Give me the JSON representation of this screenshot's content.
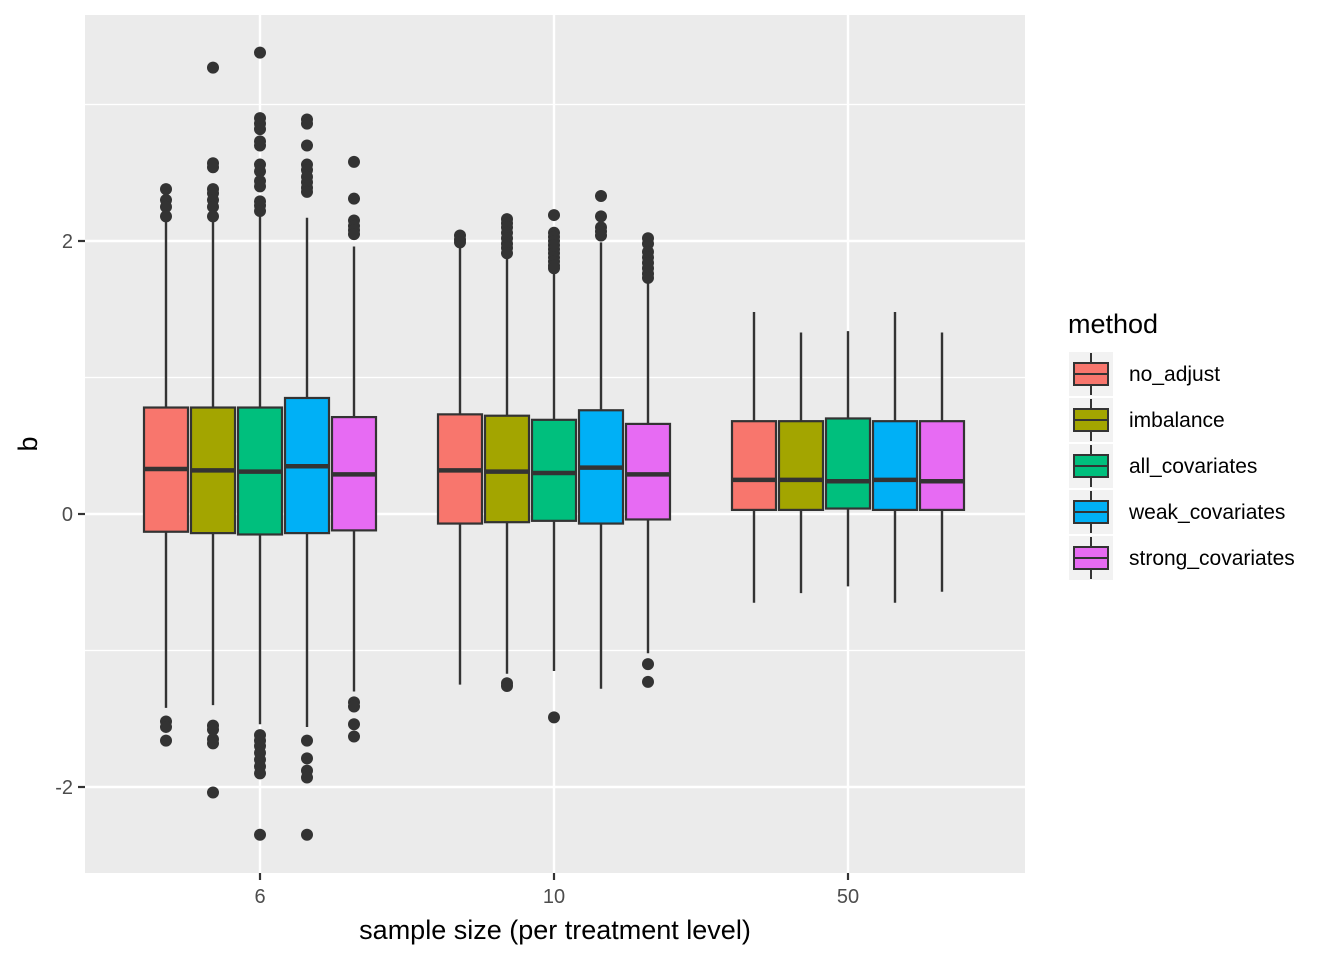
{
  "chart_data": {
    "type": "boxplot",
    "xlabel": "sample size (per treatment level)",
    "ylabel": "b",
    "categories": [
      "6",
      "10",
      "50"
    ],
    "ylim": [
      -2.6,
      3.65
    ],
    "yticks": [
      -2,
      0,
      2
    ],
    "ytick_labels": [
      "-2",
      "0",
      "2"
    ],
    "grid": true,
    "legend": {
      "title": "method",
      "position": "right",
      "entries": [
        "no_adjust",
        "imbalance",
        "all_covariates",
        "weak_covariates",
        "strong_covariates"
      ]
    },
    "colors": {
      "no_adjust": "#F8766D",
      "imbalance": "#A3A500",
      "all_covariates": "#00BF7D",
      "weak_covariates": "#00B0F6",
      "strong_covariates": "#E76BF3",
      "panel_background": "#EBEBEB",
      "grid": "#FFFFFF",
      "outline": "#333333"
    },
    "series": [
      {
        "name": "no_adjust",
        "boxes": [
          {
            "category": "6",
            "lower_whisker": -1.42,
            "q1": -0.13,
            "median": 0.33,
            "q3": 0.78,
            "upper_whisker": 2.16,
            "outliers": [
              2.38,
              2.3,
              2.25,
              2.18,
              -1.52,
              -1.56,
              -1.66
            ]
          },
          {
            "category": "10",
            "lower_whisker": -1.25,
            "q1": -0.07,
            "median": 0.32,
            "q3": 0.73,
            "upper_whisker": 1.95,
            "outliers": [
              2.04,
              2.01,
              1.99
            ]
          },
          {
            "category": "50",
            "lower_whisker": -0.65,
            "q1": 0.03,
            "median": 0.25,
            "q3": 0.68,
            "upper_whisker": 1.48,
            "outliers": []
          }
        ]
      },
      {
        "name": "imbalance",
        "boxes": [
          {
            "category": "6",
            "lower_whisker": -1.4,
            "q1": -0.14,
            "median": 0.32,
            "q3": 0.78,
            "upper_whisker": 2.16,
            "outliers": [
              3.27,
              2.57,
              2.54,
              2.38,
              2.35,
              2.3,
              2.25,
              2.18,
              -1.55,
              -1.58,
              -1.65,
              -1.68,
              -2.04
            ]
          },
          {
            "category": "10",
            "lower_whisker": -1.17,
            "q1": -0.06,
            "median": 0.31,
            "q3": 0.72,
            "upper_whisker": 1.88,
            "outliers": [
              2.16,
              2.13,
              2.1,
              2.06,
              2.02,
              1.98,
              1.95,
              1.91,
              -1.24,
              -1.26
            ]
          },
          {
            "category": "50",
            "lower_whisker": -0.58,
            "q1": 0.03,
            "median": 0.25,
            "q3": 0.68,
            "upper_whisker": 1.33,
            "outliers": []
          }
        ]
      },
      {
        "name": "all_covariates",
        "boxes": [
          {
            "category": "6",
            "lower_whisker": -1.54,
            "q1": -0.15,
            "median": 0.31,
            "q3": 0.78,
            "upper_whisker": 2.2,
            "outliers": [
              3.38,
              2.9,
              2.86,
              2.82,
              2.73,
              2.7,
              2.56,
              2.51,
              2.44,
              2.4,
              2.29,
              2.26,
              2.22,
              -1.62,
              -1.66,
              -1.7,
              -1.75,
              -1.8,
              -1.85,
              -1.9,
              -2.35
            ]
          },
          {
            "category": "10",
            "lower_whisker": -1.15,
            "q1": -0.05,
            "median": 0.3,
            "q3": 0.69,
            "upper_whisker": 1.78,
            "outliers": [
              2.19,
              2.06,
              2.03,
              2.0,
              1.97,
              1.94,
              1.91,
              1.88,
              1.85,
              1.82,
              1.8,
              -1.49
            ]
          },
          {
            "category": "50",
            "lower_whisker": -0.53,
            "q1": 0.04,
            "median": 0.24,
            "q3": 0.7,
            "upper_whisker": 1.34,
            "outliers": []
          }
        ]
      },
      {
        "name": "weak_covariates",
        "boxes": [
          {
            "category": "6",
            "lower_whisker": -1.56,
            "q1": -0.14,
            "median": 0.35,
            "q3": 0.85,
            "upper_whisker": 2.17,
            "outliers": [
              2.89,
              2.86,
              2.7,
              2.56,
              2.52,
              2.47,
              2.43,
              2.39,
              2.36,
              -1.66,
              -1.79,
              -1.88,
              -1.93,
              -2.35
            ]
          },
          {
            "category": "10",
            "lower_whisker": -1.28,
            "q1": -0.07,
            "median": 0.34,
            "q3": 0.76,
            "upper_whisker": 1.99,
            "outliers": [
              2.33,
              2.18,
              2.1,
              2.07,
              2.04
            ]
          },
          {
            "category": "50",
            "lower_whisker": -0.65,
            "q1": 0.03,
            "median": 0.25,
            "q3": 0.68,
            "upper_whisker": 1.48,
            "outliers": []
          }
        ]
      },
      {
        "name": "strong_covariates",
        "boxes": [
          {
            "category": "6",
            "lower_whisker": -1.3,
            "q1": -0.12,
            "median": 0.29,
            "q3": 0.71,
            "upper_whisker": 1.96,
            "outliers": [
              2.58,
              2.31,
              2.15,
              2.11,
              2.08,
              2.05,
              -1.38,
              -1.41,
              -1.54,
              -1.63
            ]
          },
          {
            "category": "10",
            "lower_whisker": -1.02,
            "q1": -0.04,
            "median": 0.29,
            "q3": 0.66,
            "upper_whisker": 1.71,
            "outliers": [
              2.02,
              1.98,
              1.92,
              1.88,
              1.84,
              1.8,
              1.76,
              1.73,
              -1.1,
              -1.23
            ]
          },
          {
            "category": "50",
            "lower_whisker": -0.57,
            "q1": 0.03,
            "median": 0.24,
            "q3": 0.68,
            "upper_whisker": 1.33,
            "outliers": []
          }
        ]
      }
    ]
  }
}
